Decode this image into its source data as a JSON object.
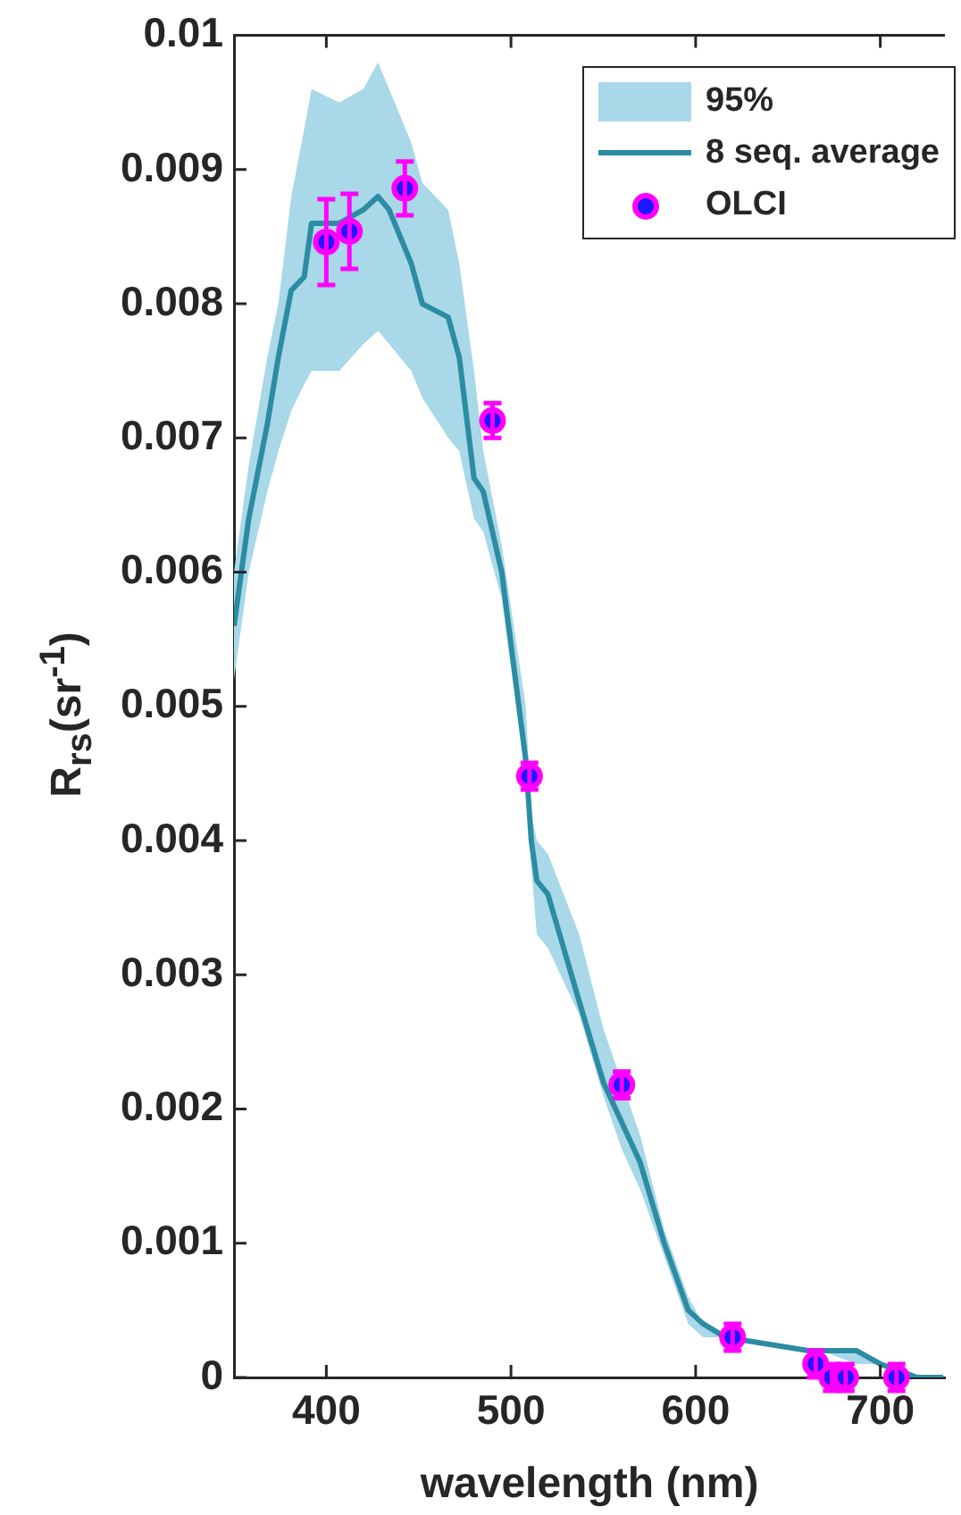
{
  "chart_data": {
    "type": "line",
    "xlabel": "wavelength (nm)",
    "ylabel": "R$_{rs}$(sr$^{-1}$)",
    "annotations": [
      "95%"
    ],
    "xlim": [
      350,
      735
    ],
    "xticks": [
      400,
      500,
      600,
      700
    ],
    "ylim": [
      0,
      0.01
    ],
    "yticks": [
      0,
      0.001,
      0.002,
      0.003,
      0.004,
      0.005,
      0.006,
      0.007,
      0.008,
      0.009,
      0.01
    ],
    "grid": false,
    "legend": "top right",
    "series": [
      {
        "name": "8 seq. average",
        "type": "line",
        "color": "#2b8ca3",
        "marker": "none",
        "line_style": "solid",
        "x": [
          350,
          358,
          368,
          374,
          381,
          388,
          392,
          407,
          420,
          428,
          434,
          446,
          452,
          466,
          472,
          480,
          485,
          495,
          508,
          511,
          514,
          520,
          537,
          550,
          560,
          570,
          583,
          596,
          604,
          616,
          661,
          668,
          687,
          700,
          720,
          734
        ],
        "values": [
          0.0056,
          0.0064,
          0.0071,
          0.0076,
          0.0081,
          0.0082,
          0.0086,
          0.0086,
          0.0087,
          0.0088,
          0.0087,
          0.0083,
          0.008,
          0.0079,
          0.0076,
          0.0067,
          0.0066,
          0.006,
          0.0046,
          0.004,
          0.0037,
          0.0036,
          0.0028,
          0.0022,
          0.0019,
          0.0016,
          0.001,
          0.0005,
          0.0004,
          0.0003,
          0.0002,
          0.0002,
          0.0002,
          0.0001,
          0,
          0
        ],
        "lower": [
          0.0052,
          0.006,
          0.0066,
          0.0069,
          0.0072,
          0.0074,
          0.0075,
          0.0075,
          0.0077,
          0.0078,
          0.0077,
          0.0075,
          0.0073,
          0.007,
          0.0069,
          0.0064,
          0.0063,
          0.0058,
          0.0045,
          0.0038,
          0.0033,
          0.0032,
          0.0027,
          0.0021,
          0.0017,
          0.0014,
          0.0009,
          0.0004,
          0.0003,
          0.0003,
          0.0002,
          0.0002,
          0.0001,
          0.0001,
          0,
          0
        ],
        "upper": [
          0.006,
          0.0068,
          0.0076,
          0.008,
          0.0088,
          0.0093,
          0.0096,
          0.0095,
          0.0096,
          0.0098,
          0.0096,
          0.0092,
          0.0089,
          0.0087,
          0.0083,
          0.0075,
          0.0069,
          0.0062,
          0.005,
          0.0042,
          0.004,
          0.0039,
          0.0033,
          0.0026,
          0.0022,
          0.0018,
          0.0011,
          0.0006,
          0.0004,
          0.0003,
          0.0002,
          0.0002,
          0.0002,
          0.0001,
          0,
          0
        ]
      },
      {
        "name": "OLCI",
        "type": "scatter",
        "color": "#ff00ff",
        "marker": "circle",
        "x": [
          400,
          412.5,
          442.5,
          490,
          510,
          560,
          620,
          665,
          673.75,
          681.25,
          708.75
        ],
        "values": [
          0.00846,
          0.00854,
          0.00886,
          0.00713,
          0.00448,
          0.00218,
          0.0003,
          0.0001,
          0,
          0,
          0
        ],
        "errors": [
          0.00032,
          0.00028,
          0.0002,
          0.00013,
          0.0001,
          0.0001,
          0.0001,
          0.0001,
          0.0001,
          0.0001,
          0.0001
        ]
      }
    ]
  }
}
